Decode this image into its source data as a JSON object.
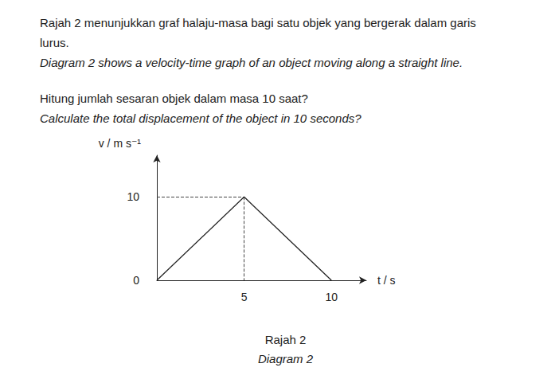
{
  "question": {
    "malay": [
      "Rajah 2 menunjukkan graf halaju-masa bagi satu objek yang bergerak dalam garis",
      "lurus."
    ],
    "english": "Diagram 2 shows a velocity-time graph of an object moving along a straight line.",
    "task_malay": "Hitung jumlah sesaran objek dalam masa 10 saat?",
    "task_english": "Calculate the total displacement of the object in 10 seconds?"
  },
  "caption": {
    "malay": "Rajah 2",
    "english": "Diagram 2"
  },
  "chart_data": {
    "type": "line",
    "x_label": "t / s",
    "y_label": "v / m s⁻¹",
    "x": [
      0,
      5,
      10
    ],
    "values": [
      0,
      10,
      0
    ],
    "color": "#222222",
    "xlim": [
      0,
      12
    ],
    "xticks": [
      5,
      10
    ],
    "ylim": [
      0,
      15
    ],
    "yticks": [
      0,
      10
    ],
    "grid": false
  }
}
